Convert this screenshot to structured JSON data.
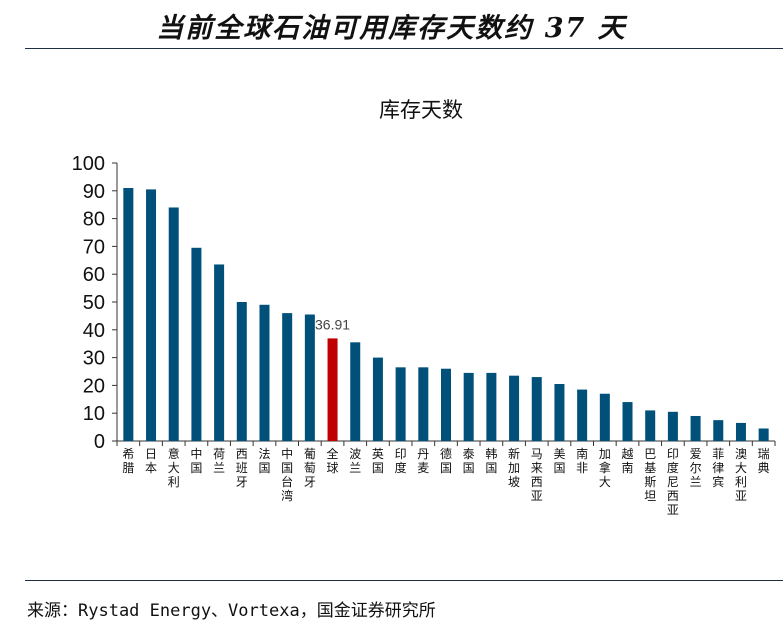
{
  "headline": "当前全球石油可用库存天数约 37 天",
  "source": "来源：Rystad Energy、Vortexa，国金证券研究所",
  "colors": {
    "bar": "#00507a",
    "highlight": "#c00000",
    "axis": "#333333"
  },
  "chart_data": {
    "type": "bar",
    "title": "库存天数",
    "xlabel": "",
    "ylabel": "",
    "ylim": [
      0,
      100
    ],
    "yticks": [
      0,
      10,
      20,
      30,
      40,
      50,
      60,
      70,
      80,
      90,
      100
    ],
    "grid": false,
    "categories": [
      "希腊",
      "日本",
      "意大利",
      "中国",
      "荷兰",
      "西班牙",
      "法国",
      "中国台湾",
      "葡萄牙",
      "全球",
      "波兰",
      "英国",
      "印度",
      "丹麦",
      "德国",
      "泰国",
      "韩国",
      "新加坡",
      "马来西亚",
      "美国",
      "南非",
      "加拿大",
      "越南",
      "巴基斯坦",
      "印度尼西亚",
      "爱尔兰",
      "菲律宾",
      "澳大利亚",
      "瑞典"
    ],
    "values": [
      91,
      90.5,
      84,
      69.5,
      63.5,
      50,
      49,
      46,
      45.5,
      36.91,
      35.5,
      30,
      26.5,
      26.5,
      26,
      24.5,
      24.5,
      23.5,
      23,
      20.5,
      18.5,
      17,
      14,
      11,
      10.5,
      9,
      7.5,
      6.5,
      4.5
    ],
    "highlight_index": 9,
    "data_labels": [
      {
        "index": 9,
        "text": "36.91"
      }
    ]
  }
}
